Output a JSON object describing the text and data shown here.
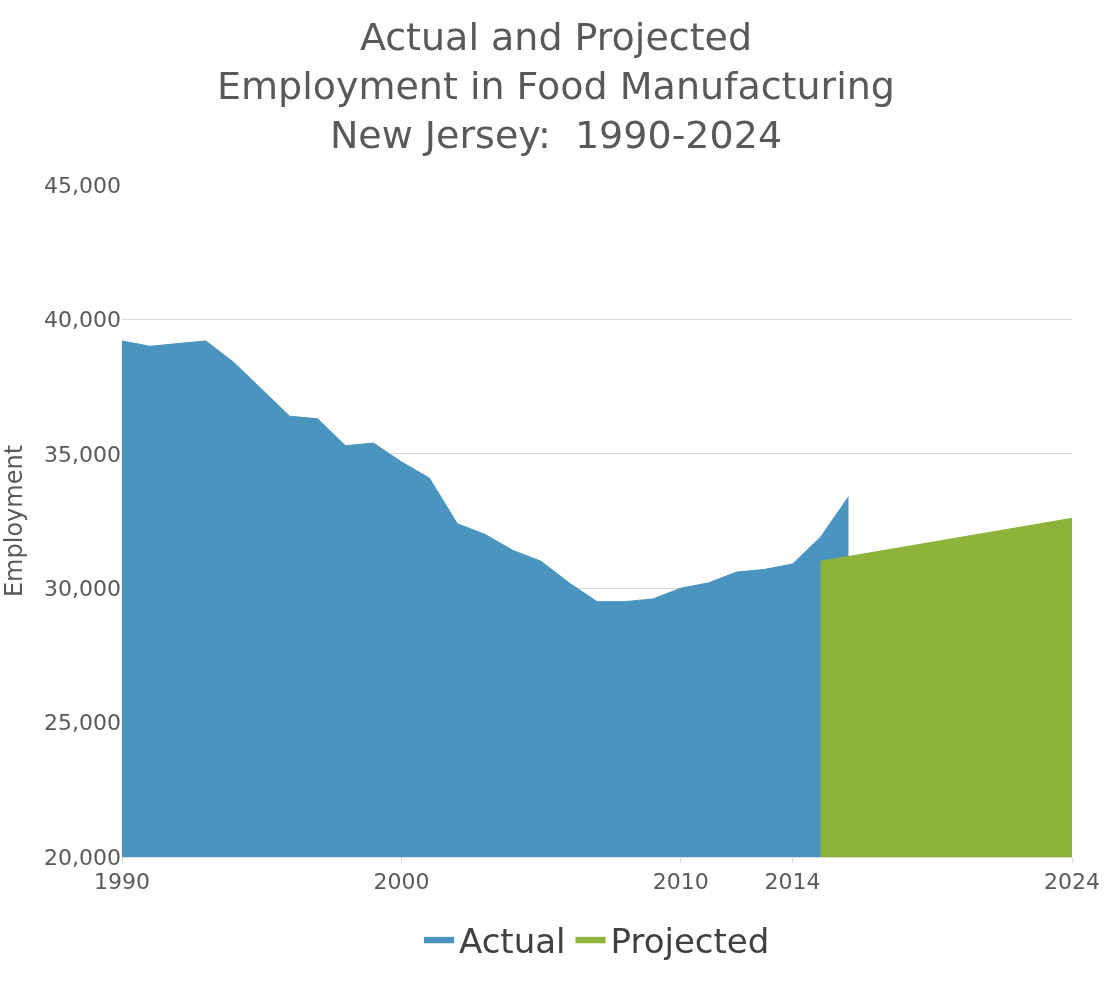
{
  "chart_data": {
    "type": "area",
    "title": "Actual and Projected\nEmployment in Food Manufacturing\nNew Jersey:  1990-2024",
    "ylabel": "Employment",
    "series": [
      {
        "name": "Actual",
        "color": "#4a94c0",
        "x": [
          1990,
          1991,
          1992,
          1993,
          1994,
          1995,
          1996,
          1997,
          1998,
          1999,
          2000,
          2001,
          2002,
          2003,
          2004,
          2005,
          2006,
          2007,
          2008,
          2009,
          2010,
          2011,
          2012,
          2013,
          2014,
          2015,
          2016
        ],
        "values": [
          39200,
          39000,
          39100,
          39200,
          38400,
          37400,
          36400,
          36300,
          35300,
          35400,
          34700,
          34100,
          32400,
          32000,
          31400,
          31000,
          30200,
          29500,
          29500,
          29600,
          30000,
          30200,
          30600,
          30700,
          30900,
          31900,
          33400
        ]
      },
      {
        "name": "Projected",
        "color": "#8db33a",
        "x": [
          2015,
          2024
        ],
        "values": [
          31000,
          32600
        ]
      }
    ],
    "xlim": [
      1990,
      2024
    ],
    "xticks": [
      1990,
      2000,
      2010,
      2014,
      2024
    ],
    "ylim": [
      20000,
      45000
    ],
    "yticks": [
      {
        "value": 20000,
        "label": "20,000"
      },
      {
        "value": 25000,
        "label": "25,000"
      },
      {
        "value": 30000,
        "label": "30,000"
      },
      {
        "value": 35000,
        "label": "35,000"
      },
      {
        "value": 40000,
        "label": "40,000"
      },
      {
        "value": 45000,
        "label": "45,000"
      }
    ],
    "grid": "y",
    "legend": "bottom"
  }
}
